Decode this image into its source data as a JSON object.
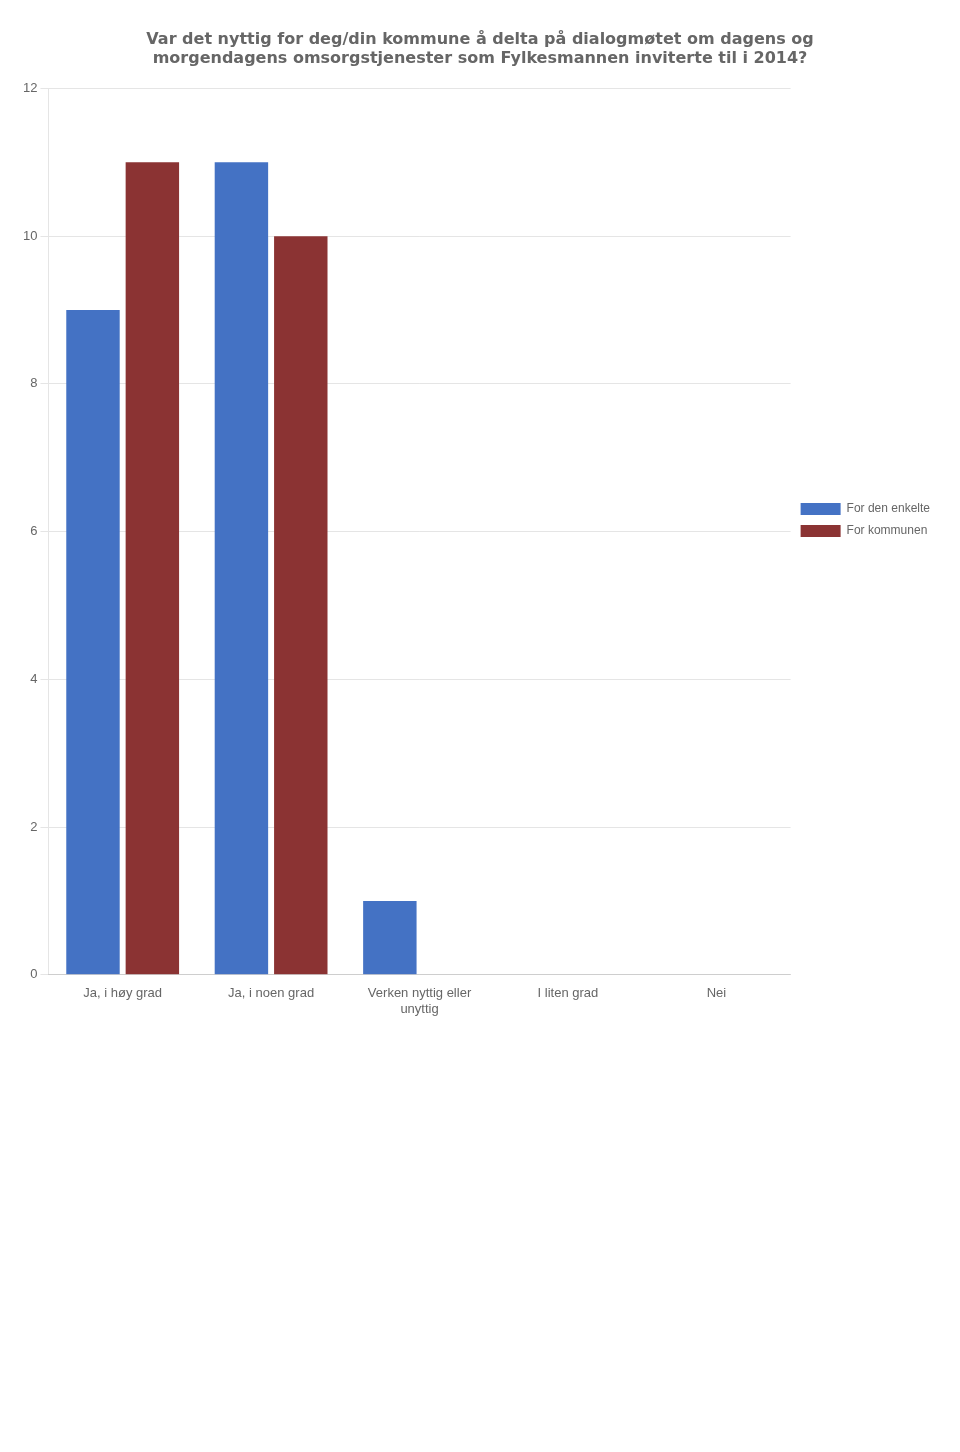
{
  "chart_data": {
    "type": "bar",
    "title": "Var det nyttig for deg/din kommune å delta på dialogmøtet om dagens og\nmorgendagens omsorgstjenester som Fylkesmannen inviterte til i 2014?",
    "categories": [
      "Ja, i høy grad",
      "Ja, i noen grad",
      "Verken nyttig eller\nunyttig",
      "I liten grad",
      "Nei"
    ],
    "series": [
      {
        "name": "For den enkelte",
        "color": "#4472C4",
        "values": [
          9,
          11,
          1,
          0,
          0
        ]
      },
      {
        "name": "For kommunen",
        "color": "#8B3333",
        "values": [
          11,
          10,
          0,
          0,
          0
        ]
      }
    ],
    "ylim": [
      0,
      12
    ],
    "yticks": [
      0,
      2,
      4,
      6,
      8,
      10,
      12
    ],
    "grid": true,
    "legend": "right"
  }
}
